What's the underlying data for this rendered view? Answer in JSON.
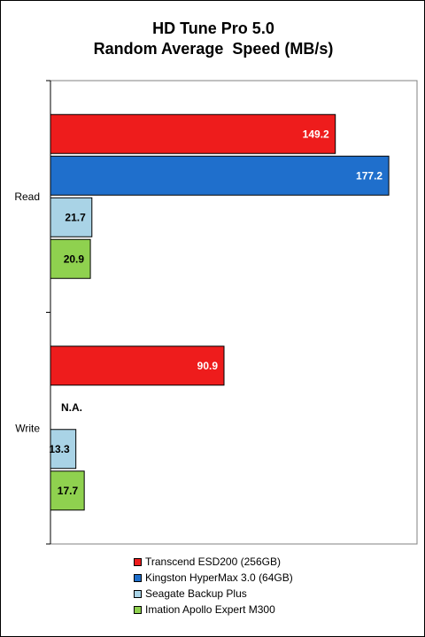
{
  "chart_data": {
    "type": "bar",
    "orientation": "horizontal",
    "title": "HD Tune Pro 5.0",
    "subtitle": "Random Average  Speed (MB/s)",
    "categories": [
      "Read",
      "Write"
    ],
    "series": [
      {
        "name": "Transcend ESD200 (256GB)",
        "color": "#ee1c1c",
        "values": [
          149.2,
          90.9
        ],
        "labels": [
          "149.2",
          "90.9"
        ],
        "label_color": "#ffffff"
      },
      {
        "name": "Kingston HyperMax 3.0 (64GB)",
        "color": "#1f6fcc",
        "values": [
          177.2,
          null
        ],
        "labels": [
          "177.2",
          "N.A."
        ],
        "label_color": "#ffffff"
      },
      {
        "name": "Seagate Backup Plus",
        "color": "#a9d3e6",
        "values": [
          21.7,
          13.3
        ],
        "labels": [
          "21.7",
          "13.3"
        ],
        "label_color": "#000000"
      },
      {
        "name": "Imation Apollo Expert M300",
        "color": "#8fd14f",
        "values": [
          20.9,
          17.7
        ],
        "labels": [
          "20.9",
          "17.7"
        ],
        "label_color": "#000000"
      }
    ],
    "xlim": [
      0,
      192
    ],
    "grid": false,
    "legend_position": "bottom"
  }
}
